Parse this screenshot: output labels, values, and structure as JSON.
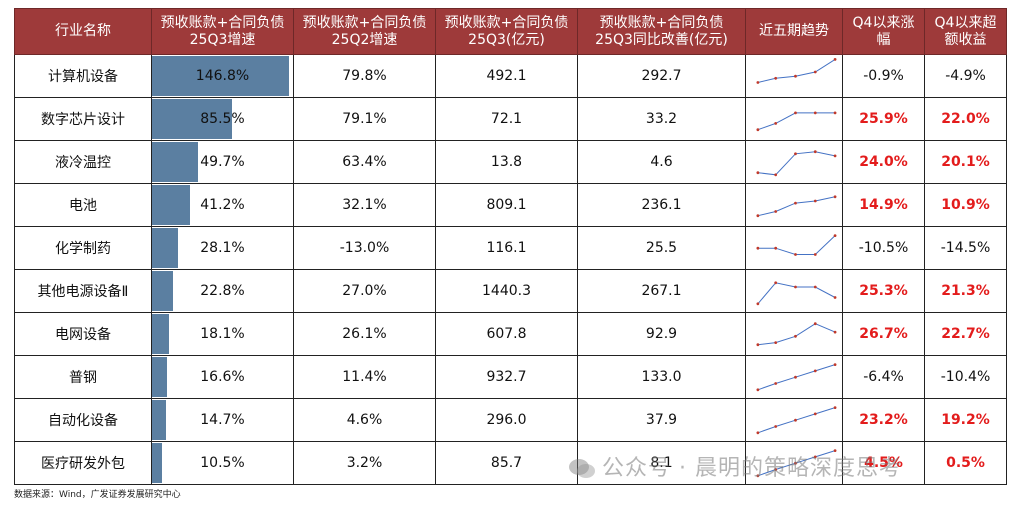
{
  "headers": [
    "行业名称",
    "预收账款+合同负债\n25Q3增速",
    "预收账款+合同负债\n25Q2增速",
    "预收账款+合同负债\n25Q3(亿元)",
    "预收账款+合同负债\n25Q3同比改善(亿元)",
    "近五期趋势",
    "Q4以来涨\n幅",
    "Q4以来超\n额收益"
  ],
  "rows": [
    {
      "name": "计算机设备",
      "g3": "146.8%",
      "g3v": 146.8,
      "g2": "79.8%",
      "amt": "492.1",
      "imp": "292.7",
      "chg": "-0.9%",
      "ex": "-4.9%",
      "chg_pos": false,
      "ex_pos": false,
      "trend": [
        5,
        7,
        8,
        10,
        16
      ]
    },
    {
      "name": "数字芯片设计",
      "g3": "85.5%",
      "g3v": 85.5,
      "g2": "79.1%",
      "amt": "72.1",
      "imp": "33.2",
      "chg": "25.9%",
      "ex": "22.0%",
      "chg_pos": true,
      "ex_pos": true,
      "trend": [
        3,
        6,
        11,
        11,
        11
      ]
    },
    {
      "name": "液冷温控",
      "g3": "49.7%",
      "g3v": 49.7,
      "g2": "63.4%",
      "amt": "13.8",
      "imp": "4.6",
      "chg": "24.0%",
      "ex": "20.1%",
      "chg_pos": true,
      "ex_pos": true,
      "trend": [
        3,
        2,
        12,
        13,
        11
      ]
    },
    {
      "name": "电池",
      "g3": "41.2%",
      "g3v": 41.2,
      "g2": "32.1%",
      "amt": "809.1",
      "imp": "236.1",
      "chg": "14.9%",
      "ex": "10.9%",
      "chg_pos": true,
      "ex_pos": true,
      "trend": [
        3,
        5,
        9,
        10,
        12
      ]
    },
    {
      "name": "化学制药",
      "g3": "28.1%",
      "g3v": 28.1,
      "g2": "-13.0%",
      "amt": "116.1",
      "imp": "25.5",
      "chg": "-10.5%",
      "ex": "-14.5%",
      "chg_pos": false,
      "ex_pos": false,
      "trend": [
        8,
        8,
        5,
        5,
        14
      ]
    },
    {
      "name": "其他电源设备Ⅱ",
      "g3": "22.8%",
      "g3v": 22.8,
      "g2": "27.0%",
      "amt": "1440.3",
      "imp": "267.1",
      "chg": "25.3%",
      "ex": "21.3%",
      "chg_pos": true,
      "ex_pos": true,
      "trend": [
        2,
        12,
        10,
        10,
        5
      ]
    },
    {
      "name": "电网设备",
      "g3": "18.1%",
      "g3v": 18.1,
      "g2": "26.1%",
      "amt": "607.8",
      "imp": "92.9",
      "chg": "26.7%",
      "ex": "22.7%",
      "chg_pos": true,
      "ex_pos": true,
      "trend": [
        3,
        4,
        7,
        13,
        9
      ]
    },
    {
      "name": "普钢",
      "g3": "16.6%",
      "g3v": 16.6,
      "g2": "11.4%",
      "amt": "932.7",
      "imp": "133.0",
      "chg": "-6.4%",
      "ex": "-10.4%",
      "chg_pos": false,
      "ex_pos": false,
      "trend": [
        2,
        5,
        8,
        11,
        14
      ]
    },
    {
      "name": "自动化设备",
      "g3": "14.7%",
      "g3v": 14.7,
      "g2": "4.6%",
      "amt": "296.0",
      "imp": "37.9",
      "chg": "23.2%",
      "ex": "19.2%",
      "chg_pos": true,
      "ex_pos": true,
      "trend": [
        2,
        5,
        8,
        11,
        14
      ]
    },
    {
      "name": "医疗研发外包",
      "g3": "10.5%",
      "g3v": 10.5,
      "g2": "3.2%",
      "amt": "85.7",
      "imp": "8.1",
      "chg": "4.5%",
      "ex": "0.5%",
      "chg_pos": true,
      "ex_pos": true,
      "trend": [
        2,
        5,
        8,
        11,
        14
      ]
    }
  ],
  "source": "数据来源：Wind，广发证券发展研究中心",
  "watermark": "公众号 · 晨明的策略深度思考",
  "colors": {
    "header_bg": "#9e3a3a",
    "bar": "#5b7fa1",
    "positive": "#e31c1c",
    "trend_line": "#4472c4",
    "trend_dot": "#c0392b"
  }
}
